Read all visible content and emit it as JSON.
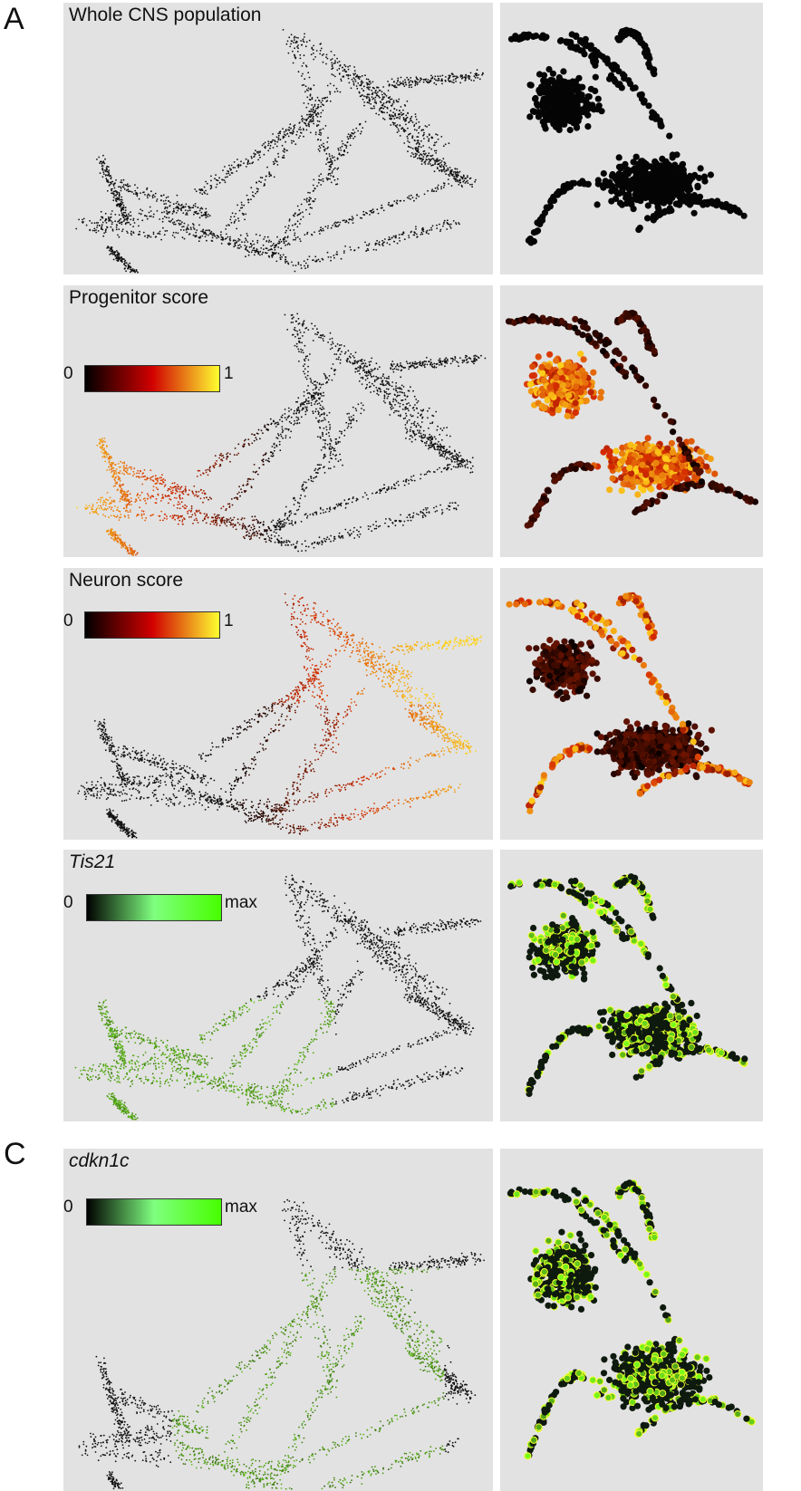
{
  "section_labels": {
    "a": "A",
    "c": "C"
  },
  "rows": [
    {
      "title": "Whole CNS population",
      "italic": false,
      "scheme": "none"
    },
    {
      "title": "Progenitor score",
      "italic": false,
      "scheme": "heat",
      "scale_min": "0",
      "scale_max": "1",
      "gradient": [
        "#000000",
        "#d10000",
        "#ffff30"
      ]
    },
    {
      "title": "Neuron score",
      "italic": false,
      "scheme": "heat",
      "scale_min": "0",
      "scale_max": "1",
      "gradient": [
        "#000000",
        "#d10000",
        "#ffff30"
      ]
    },
    {
      "title": "Tis21",
      "italic": true,
      "scheme": "green",
      "scale_min": "0",
      "scale_max": "max",
      "gradient": [
        "#000000",
        "#7fff7f",
        "#47ff00"
      ]
    },
    {
      "title": "cdkn1c",
      "italic": true,
      "scheme": "green",
      "scale_min": "0",
      "scale_max": "max",
      "gradient": [
        "#000000",
        "#7fff7f",
        "#47ff00"
      ]
    }
  ],
  "colors": {
    "panel_bg": "#e2e2e2",
    "point_dark": "#111111",
    "heat_hi": "#ffd21a",
    "heat_mid": "#d42a00",
    "green_hi": "#7cff1a",
    "green_outline": "#f4ff2e"
  }
}
